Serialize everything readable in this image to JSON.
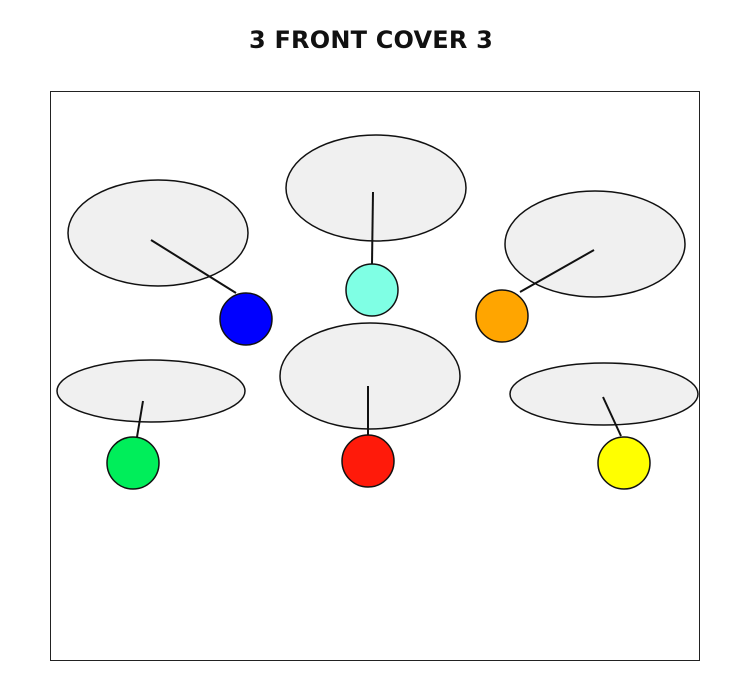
{
  "header": {
    "title": "3 FRONT COVER 3"
  },
  "diagram": {
    "ellipse_fill": "#f0f0f0",
    "stroke_color": "#111111",
    "groups": [
      {
        "id": "group-blue",
        "dot_color": "#0000ff"
      },
      {
        "id": "group-cyan",
        "dot_color": "#7fffe4"
      },
      {
        "id": "group-orange",
        "dot_color": "#ffa500"
      },
      {
        "id": "group-green",
        "dot_color": "#00ee5a"
      },
      {
        "id": "group-red",
        "dot_color": "#ff1a0a"
      },
      {
        "id": "group-yellow",
        "dot_color": "#ffff00"
      }
    ]
  }
}
